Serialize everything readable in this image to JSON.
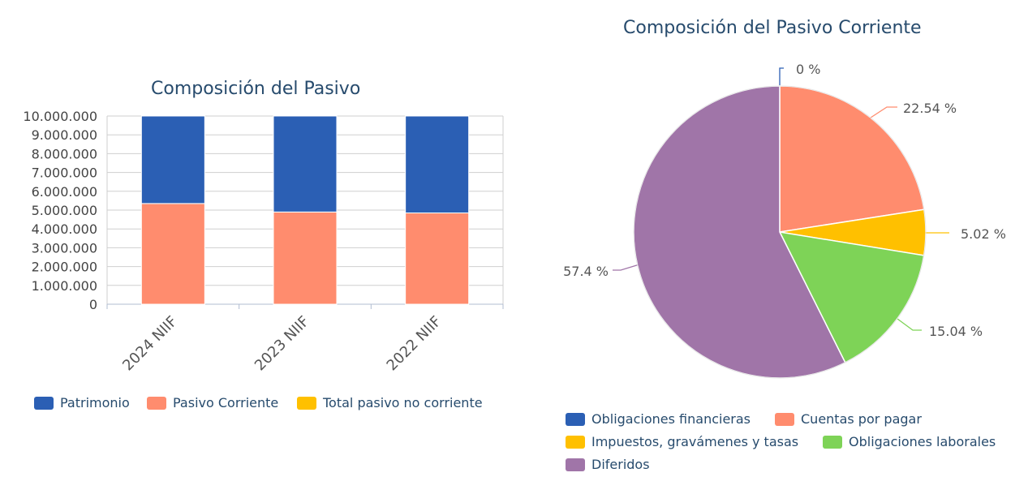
{
  "chart_data": [
    {
      "type": "bar",
      "stacked": true,
      "title": "Composición del Pasivo",
      "categories": [
        "2024 NIIF",
        "2023 NIIF",
        "2022 NIIF"
      ],
      "ylim": [
        0,
        10000000
      ],
      "yticks": [
        "0",
        "1.000.000",
        "2.000.000",
        "3.000.000",
        "4.000.000",
        "5.000.000",
        "6.000.000",
        "7.000.000",
        "8.000.000",
        "9.000.000",
        "10.000.000"
      ],
      "grid": true,
      "legend_position": "bottom",
      "series": [
        {
          "name": "Patrimonio",
          "color": "#2b5fb4",
          "values": [
            4650000,
            5100000,
            5150000
          ]
        },
        {
          "name": "Pasivo Corriente",
          "color": "#ff8c6e",
          "values": [
            5350000,
            4900000,
            4850000
          ]
        },
        {
          "name": "Total pasivo no corriente",
          "color": "#ffc000",
          "values": [
            0,
            0,
            0
          ]
        }
      ]
    },
    {
      "type": "pie",
      "title": "Composición del Pasivo Corriente",
      "legend_position": "bottom",
      "slices": [
        {
          "name": "Obligaciones financieras",
          "value": 0,
          "label": "0 %",
          "color": "#2b5fb4"
        },
        {
          "name": "Cuentas por pagar",
          "value": 22.54,
          "label": "22.54 %",
          "color": "#ff8c6e"
        },
        {
          "name": "Impuestos, gravámenes y tasas",
          "value": 5.02,
          "label": "5.02 %",
          "color": "#ffc000"
        },
        {
          "name": "Obligaciones laborales",
          "value": 15.04,
          "label": "15.04 %",
          "color": "#7ed357"
        },
        {
          "name": "Diferidos",
          "value": 57.4,
          "label": "57.4 %",
          "color": "#a075a8"
        }
      ]
    }
  ]
}
